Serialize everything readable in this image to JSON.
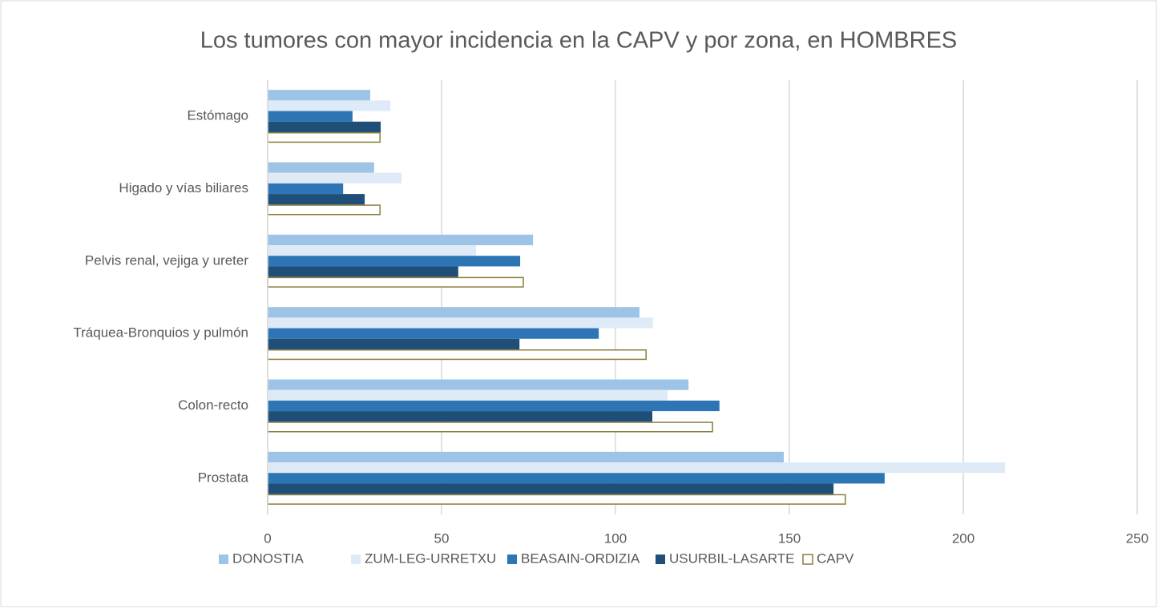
{
  "chart_data": {
    "type": "hbar",
    "title": "Los tumores con mayor incidencia en la CAPV y por zona, en HOMBRES",
    "categories": [
      "Estómago",
      "Higado y vías biliares",
      "Pelvis renal, vejiga y ureter",
      "Tráquea-Bronquios y pulmón",
      "Colon-recto",
      "Prostata"
    ],
    "series": [
      {
        "name": "DONOSTIA",
        "color": "#9dc3e6",
        "values": [
          29.5,
          30.6,
          76.3,
          106.9,
          121,
          148.4
        ]
      },
      {
        "name": "ZUM-LEG-URRETXU",
        "color": "#deebf7",
        "values": [
          35.3,
          38.5,
          59.9,
          110.8,
          115,
          212
        ]
      },
      {
        "name": "BEASAIN-ORDIZIA",
        "color": "#2e75b6",
        "values": [
          24.4,
          21.7,
          72.6,
          95.2,
          129.9,
          177.4
        ]
      },
      {
        "name": "USURBIL-LASARTE",
        "color": "#1f4e79",
        "values": [
          32.5,
          27.9,
          54.8,
          72.4,
          110.6,
          162.7
        ]
      },
      {
        "name": "CAPV",
        "color": "#8b7d3a",
        "outline": true,
        "values": [
          32.3,
          32.3,
          73.5,
          108.8,
          127.9,
          166.1
        ]
      }
    ],
    "xlim": [
      0,
      250
    ],
    "xticks": [
      0,
      50,
      100,
      150,
      200,
      250
    ],
    "grid": true,
    "legend": "bottom"
  }
}
